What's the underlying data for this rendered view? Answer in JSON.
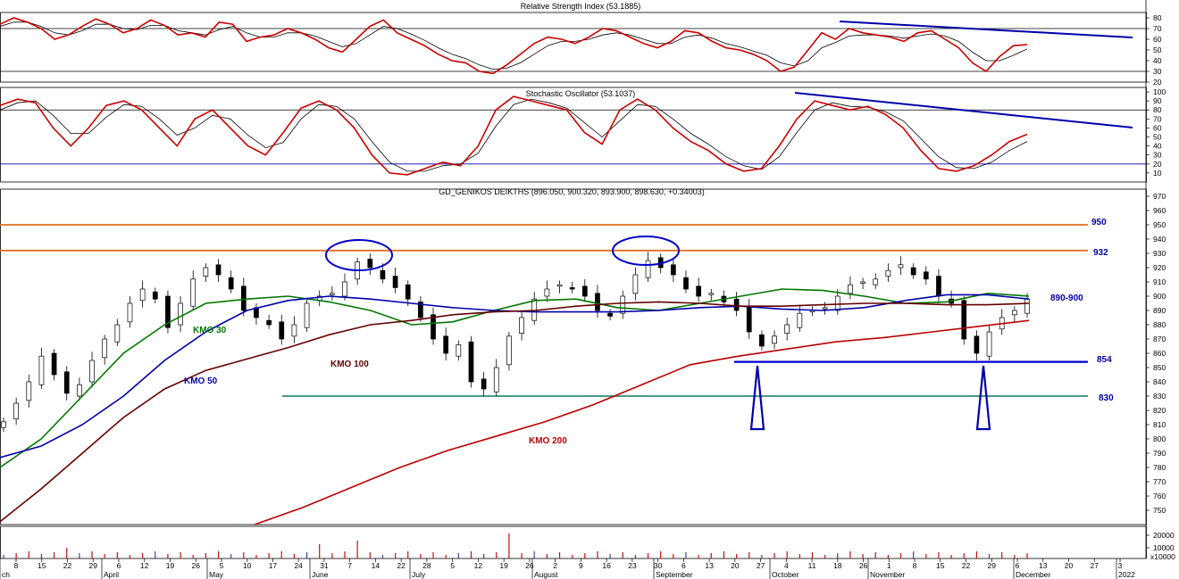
{
  "chart_data": [
    {
      "type": "line",
      "title": "Relative Strength Index (53.1885)",
      "ylim": [
        20,
        85
      ],
      "y_ticks": [
        "80",
        "70",
        "60",
        "50",
        "40",
        "30",
        "20"
      ],
      "reference_lines": [
        70,
        30
      ],
      "series": [
        {
          "color": "#cc0000",
          "values": [
            74,
            80,
            76,
            70,
            60,
            64,
            72,
            79,
            74,
            66,
            70,
            78,
            73,
            64,
            66,
            62,
            76,
            74,
            58,
            62,
            64,
            70,
            66,
            60,
            52,
            48,
            60,
            72,
            78,
            66,
            60,
            54,
            46,
            40,
            38,
            30,
            28,
            36,
            46,
            56,
            62,
            60,
            56,
            62,
            70,
            68,
            62,
            56,
            52,
            58,
            68,
            66,
            58,
            52,
            50,
            46,
            40,
            30,
            34,
            50,
            66,
            60,
            70,
            66,
            64,
            62,
            58,
            66,
            68,
            60,
            52,
            38,
            30,
            44,
            54,
            55
          ]
        },
        {
          "color": "#000000",
          "values": [
            72,
            76,
            76,
            72,
            66,
            64,
            68,
            74,
            74,
            70,
            69,
            73,
            73,
            68,
            66,
            64,
            69,
            72,
            66,
            62,
            62,
            66,
            66,
            63,
            58,
            53,
            56,
            64,
            72,
            70,
            65,
            59,
            52,
            46,
            42,
            36,
            32,
            33,
            38,
            46,
            54,
            58,
            58,
            60,
            64,
            66,
            64,
            60,
            56,
            56,
            62,
            64,
            61,
            56,
            53,
            49,
            45,
            38,
            35,
            40,
            52,
            57,
            63,
            64,
            64,
            63,
            61,
            63,
            65,
            63,
            58,
            48,
            40,
            40,
            45,
            51
          ]
        }
      ]
    },
    {
      "type": "line",
      "title": "Stochastic Oscillator (53.1037)",
      "ylim": [
        0,
        105
      ],
      "y_ticks": [
        "100",
        "90",
        "80",
        "70",
        "60",
        "50",
        "40",
        "30",
        "20",
        "10"
      ],
      "reference_lines": [
        80,
        20
      ],
      "series": [
        {
          "color": "#cc0000",
          "values": [
            85,
            92,
            88,
            60,
            40,
            60,
            85,
            90,
            80,
            60,
            40,
            70,
            80,
            60,
            40,
            30,
            55,
            82,
            90,
            80,
            60,
            30,
            10,
            8,
            15,
            22,
            18,
            40,
            80,
            95,
            90,
            85,
            80,
            55,
            42,
            80,
            92,
            80,
            60,
            45,
            35,
            20,
            12,
            15,
            40,
            70,
            90,
            85,
            80,
            84,
            75,
            60,
            35,
            15,
            12,
            18,
            30,
            45,
            53
          ]
        },
        {
          "color": "#000000",
          "values": [
            80,
            88,
            90,
            74,
            54,
            54,
            72,
            86,
            84,
            70,
            52,
            60,
            74,
            70,
            52,
            38,
            44,
            70,
            86,
            84,
            70,
            45,
            22,
            12,
            12,
            18,
            20,
            32,
            62,
            86,
            92,
            88,
            82,
            66,
            50,
            68,
            86,
            84,
            70,
            54,
            42,
            28,
            18,
            14,
            28,
            55,
            80,
            88,
            84,
            83,
            78,
            68,
            48,
            28,
            16,
            15,
            22,
            35,
            45
          ]
        }
      ]
    },
    {
      "type": "candlestick",
      "title": "GD_GENIKOS DEIKTHS (896.050, 900.320, 893.900, 898.630, +0.34003)",
      "ylim": [
        740,
        975
      ],
      "y_ticks": [
        "970",
        "960",
        "950",
        "940",
        "930",
        "920",
        "910",
        "900",
        "890",
        "880",
        "870",
        "860",
        "850",
        "840",
        "830",
        "820",
        "810",
        "800",
        "790",
        "780",
        "770",
        "760",
        "750"
      ],
      "close": [
        812,
        825,
        840,
        858,
        845,
        832,
        838,
        855,
        870,
        880,
        895,
        905,
        898,
        878,
        895,
        912,
        920,
        915,
        905,
        890,
        885,
        880,
        870,
        880,
        895,
        900,
        902,
        910,
        924,
        920,
        912,
        906,
        898,
        885,
        870,
        860,
        866,
        840,
        835,
        850,
        872,
        885,
        898,
        905,
        908,
        905,
        900,
        890,
        886,
        900,
        915,
        925,
        920,
        915,
        905,
        900,
        902,
        896,
        890,
        875,
        865,
        872,
        880,
        888,
        890,
        892,
        900,
        908,
        910,
        912,
        918,
        922,
        915,
        912,
        900,
        895,
        870,
        860,
        875,
        885,
        890,
        898
      ],
      "moving_averages": [
        {
          "name": "KMO 30",
          "color": "#007700",
          "values": [
            780,
            800,
            830,
            860,
            880,
            895,
            898,
            900,
            896,
            890,
            880,
            882,
            890,
            897,
            898,
            892,
            890,
            895,
            900,
            905,
            904,
            900,
            895,
            896,
            902,
            900
          ]
        },
        {
          "name": "KMO 50",
          "color": "#0000aa",
          "values": [
            787,
            795,
            810,
            830,
            855,
            875,
            890,
            897,
            900,
            898,
            895,
            892,
            890,
            889,
            889,
            889,
            890,
            892,
            893,
            891,
            890,
            892,
            897,
            901,
            901,
            898
          ]
        },
        {
          "name": "KMO 100",
          "color": "#660000",
          "values": [
            742,
            765,
            790,
            815,
            835,
            848,
            856,
            864,
            873,
            880,
            883,
            887,
            889,
            890,
            893,
            895,
            896,
            895,
            893,
            893,
            894,
            895,
            895,
            894,
            894,
            895
          ]
        },
        {
          "name": "KMO 200",
          "color": "#bb0000",
          "values": [
            740,
            752,
            766,
            780,
            792,
            802,
            812,
            824,
            838,
            852,
            858,
            863,
            868,
            871,
            875,
            879,
            883
          ]
        }
      ],
      "levels": [
        {
          "label": "950",
          "value": 950,
          "color": "#e07020"
        },
        {
          "label": "932",
          "value": 932,
          "color": "#e07020"
        },
        {
          "label": "854",
          "value": 854,
          "color": "#0000cc"
        },
        {
          "label": "830",
          "value": 830,
          "color": "#2e8b70"
        }
      ],
      "zone_label": "890-900"
    },
    {
      "type": "bar",
      "title": "",
      "y_ticks": [
        "20000",
        "10000"
      ],
      "unit": "x10000"
    }
  ],
  "x_axis": {
    "day_ticks": [
      "8",
      "15",
      "22",
      "29",
      "6",
      "12",
      "19",
      "26",
      "5",
      "10",
      "17",
      "24",
      "31",
      "7",
      "14",
      "22",
      "28",
      "5",
      "12",
      "19",
      "26",
      "2",
      "9",
      "16",
      "23",
      "30",
      "6",
      "13",
      "20",
      "27",
      "4",
      "11",
      "18",
      "26",
      "1",
      "8",
      "15",
      "22",
      "29",
      "6",
      "13",
      "20",
      "27",
      "3"
    ],
    "month_labels": [
      "ch",
      "April",
      "May",
      "June",
      "July",
      "August",
      "September",
      "October",
      "November",
      "December",
      "2022"
    ]
  },
  "annotations": {
    "ma_labels": [
      "KMO 30",
      "KMO 50",
      "KMO 100",
      "KMO 200"
    ],
    "level_labels": [
      "950",
      "932",
      "854",
      "830"
    ],
    "zone_label": "890-900"
  },
  "colors": {
    "trendline": "#0000aa",
    "ellipse": "#0000cc",
    "volume": "#c01010"
  }
}
